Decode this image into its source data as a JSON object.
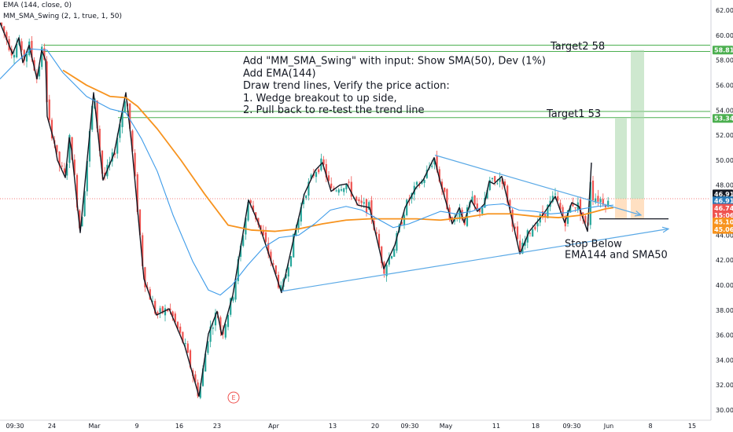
{
  "indicators": {
    "ema_label": "EMA (144, close, 0)",
    "swing_label": "MM_SMA_Swing (2, 1, true, 1, 50)"
  },
  "colors": {
    "up_candle": "#26a69a",
    "down_candle": "#ef5350",
    "ema144": "#f7931e",
    "sma50": "#3d9be9",
    "swing_line": "#131722",
    "trend_line": "#5aa9e6",
    "target_line": "#4caf50",
    "target_box": "#a5d6a7",
    "stop_box": "#ffcc99",
    "current_price": "#ef5350",
    "axis_text": "#131722"
  },
  "chart_data": {
    "type": "line",
    "title": "",
    "xlabel": "",
    "ylabel": "",
    "ylim": [
      29.5,
      63
    ],
    "grid": false,
    "x_ticks": [
      "09:30",
      "24",
      "Mar",
      "9",
      "16",
      "23",
      "Apr",
      "13",
      "20",
      "09:30",
      "May",
      "11",
      "18",
      "09:30",
      "Jun",
      "8",
      "15"
    ],
    "y_ticks": [
      30.0,
      32.0,
      34.0,
      36.0,
      38.0,
      40.0,
      42.0,
      44.0,
      46.0,
      48.0,
      50.0,
      52.0,
      54.0,
      56.0,
      58.0,
      60.0,
      62.0
    ],
    "series": [
      {
        "role": "swing",
        "values": [
          {
            "x": 0,
            "y": 61.0
          },
          {
            "x": 16,
            "y": 58.5
          },
          {
            "x": 24,
            "y": 59.8
          },
          {
            "x": 29,
            "y": 57.8
          },
          {
            "x": 37,
            "y": 59.2
          },
          {
            "x": 47,
            "y": 56.5
          },
          {
            "x": 53,
            "y": 58.8
          },
          {
            "x": 58,
            "y": 58.0
          },
          {
            "x": 60,
            "y": 53.5
          },
          {
            "x": 69,
            "y": 51.5
          },
          {
            "x": 73,
            "y": 50.0
          },
          {
            "x": 83,
            "y": 48.6
          },
          {
            "x": 88,
            "y": 51.8
          },
          {
            "x": 91,
            "y": 50.8
          },
          {
            "x": 102,
            "y": 44.2
          },
          {
            "x": 119,
            "y": 55.4
          },
          {
            "x": 131,
            "y": 48.4
          },
          {
            "x": 145,
            "y": 50.5
          },
          {
            "x": 160,
            "y": 55.4
          },
          {
            "x": 167,
            "y": 51.5
          },
          {
            "x": 183,
            "y": 40.5
          },
          {
            "x": 199,
            "y": 37.6
          },
          {
            "x": 215,
            "y": 38.1
          },
          {
            "x": 235,
            "y": 35.1
          },
          {
            "x": 253,
            "y": 31.1
          },
          {
            "x": 265,
            "y": 36.1
          },
          {
            "x": 276,
            "y": 37.9
          },
          {
            "x": 282,
            "y": 36.0
          },
          {
            "x": 296,
            "y": 39.2
          },
          {
            "x": 316,
            "y": 46.8
          },
          {
            "x": 329,
            "y": 44.9
          },
          {
            "x": 358,
            "y": 39.4
          },
          {
            "x": 373,
            "y": 43.6
          },
          {
            "x": 387,
            "y": 47.3
          },
          {
            "x": 401,
            "y": 49.2
          },
          {
            "x": 410,
            "y": 49.8
          },
          {
            "x": 421,
            "y": 47.5
          },
          {
            "x": 432,
            "y": 48.0
          },
          {
            "x": 441,
            "y": 48.1
          },
          {
            "x": 455,
            "y": 46.4
          },
          {
            "x": 470,
            "y": 46.2
          },
          {
            "x": 488,
            "y": 41.3
          },
          {
            "x": 502,
            "y": 43.2
          },
          {
            "x": 515,
            "y": 46.2
          },
          {
            "x": 529,
            "y": 47.8
          },
          {
            "x": 538,
            "y": 48.4
          },
          {
            "x": 552,
            "y": 50.2
          },
          {
            "x": 560,
            "y": 48.2
          },
          {
            "x": 575,
            "y": 44.9
          },
          {
            "x": 584,
            "y": 46.2
          },
          {
            "x": 590,
            "y": 45.0
          },
          {
            "x": 599,
            "y": 46.8
          },
          {
            "x": 607,
            "y": 45.9
          },
          {
            "x": 616,
            "y": 46.5
          },
          {
            "x": 622,
            "y": 48.3
          },
          {
            "x": 628,
            "y": 48.1
          },
          {
            "x": 638,
            "y": 48.7
          },
          {
            "x": 647,
            "y": 46.4
          },
          {
            "x": 661,
            "y": 42.5
          },
          {
            "x": 673,
            "y": 44.3
          },
          {
            "x": 690,
            "y": 45.6
          },
          {
            "x": 706,
            "y": 47.1
          },
          {
            "x": 718,
            "y": 45.0
          },
          {
            "x": 727,
            "y": 46.6
          },
          {
            "x": 736,
            "y": 46.3
          },
          {
            "x": 747,
            "y": 44.3
          },
          {
            "x": 752,
            "y": 49.8
          }
        ]
      },
      {
        "role": "ema144",
        "values": [
          {
            "x": 80,
            "y": 57.2
          },
          {
            "x": 110,
            "y": 56.0
          },
          {
            "x": 140,
            "y": 55.1
          },
          {
            "x": 160,
            "y": 55.0
          },
          {
            "x": 175,
            "y": 54.3
          },
          {
            "x": 200,
            "y": 52.5
          },
          {
            "x": 230,
            "y": 50.0
          },
          {
            "x": 260,
            "y": 47.3
          },
          {
            "x": 290,
            "y": 44.8
          },
          {
            "x": 320,
            "y": 44.4
          },
          {
            "x": 350,
            "y": 44.3
          },
          {
            "x": 380,
            "y": 44.5
          },
          {
            "x": 410,
            "y": 44.9
          },
          {
            "x": 440,
            "y": 45.2
          },
          {
            "x": 470,
            "y": 45.3
          },
          {
            "x": 500,
            "y": 45.3
          },
          {
            "x": 530,
            "y": 45.3
          },
          {
            "x": 560,
            "y": 45.2
          },
          {
            "x": 590,
            "y": 45.4
          },
          {
            "x": 620,
            "y": 45.7
          },
          {
            "x": 650,
            "y": 45.7
          },
          {
            "x": 680,
            "y": 45.5
          },
          {
            "x": 710,
            "y": 45.4
          },
          {
            "x": 740,
            "y": 45.6
          },
          {
            "x": 770,
            "y": 46.1
          },
          {
            "x": 780,
            "y": 46.2
          }
        ]
      },
      {
        "role": "sma50",
        "values": [
          {
            "x": 0,
            "y": 56.5
          },
          {
            "x": 20,
            "y": 57.8
          },
          {
            "x": 40,
            "y": 58.9
          },
          {
            "x": 60,
            "y": 58.8
          },
          {
            "x": 80,
            "y": 57.0
          },
          {
            "x": 110,
            "y": 55.1
          },
          {
            "x": 140,
            "y": 54.1
          },
          {
            "x": 160,
            "y": 53.8
          },
          {
            "x": 180,
            "y": 51.7
          },
          {
            "x": 200,
            "y": 49.1
          },
          {
            "x": 220,
            "y": 45.6
          },
          {
            "x": 245,
            "y": 41.9
          },
          {
            "x": 265,
            "y": 39.6
          },
          {
            "x": 280,
            "y": 39.2
          },
          {
            "x": 295,
            "y": 40.0
          },
          {
            "x": 315,
            "y": 41.6
          },
          {
            "x": 335,
            "y": 43.0
          },
          {
            "x": 355,
            "y": 43.8
          },
          {
            "x": 380,
            "y": 44.0
          },
          {
            "x": 400,
            "y": 44.9
          },
          {
            "x": 420,
            "y": 46.0
          },
          {
            "x": 440,
            "y": 46.3
          },
          {
            "x": 460,
            "y": 46.0
          },
          {
            "x": 480,
            "y": 45.3
          },
          {
            "x": 500,
            "y": 44.6
          },
          {
            "x": 520,
            "y": 44.9
          },
          {
            "x": 540,
            "y": 45.4
          },
          {
            "x": 560,
            "y": 45.9
          },
          {
            "x": 580,
            "y": 45.7
          },
          {
            "x": 600,
            "y": 45.9
          },
          {
            "x": 620,
            "y": 46.4
          },
          {
            "x": 640,
            "y": 46.5
          },
          {
            "x": 660,
            "y": 46.0
          },
          {
            "x": 680,
            "y": 45.9
          },
          {
            "x": 700,
            "y": 45.7
          },
          {
            "x": 720,
            "y": 45.8
          },
          {
            "x": 740,
            "y": 46.1
          },
          {
            "x": 760,
            "y": 46.3
          },
          {
            "x": 780,
            "y": 46.4
          }
        ]
      }
    ],
    "trend_lines": [
      {
        "name": "upper",
        "from": {
          "x": 553,
          "y": 50.4
        },
        "to": {
          "x": 815,
          "y": 45.6
        }
      },
      {
        "name": "lower",
        "from": {
          "x": 358,
          "y": 39.5
        },
        "to": {
          "x": 850,
          "y": 44.5
        }
      }
    ],
    "stop_line": {
      "from": {
        "x": 762,
        "y": 45.3
      },
      "to": {
        "x": 850,
        "y": 45.3
      }
    },
    "horizontal_levels": [
      {
        "y": 59.2,
        "from_x": 55
      },
      {
        "y": 58.7,
        "from_x": 55
      },
      {
        "y": 53.9,
        "from_x": 150
      },
      {
        "y": 53.4,
        "from_x": 150
      }
    ],
    "target_boxes": [
      {
        "x0": 782,
        "x1": 797,
        "y0": 46.9,
        "y1": 53.34
      },
      {
        "x0": 802,
        "x1": 819,
        "y0": 46.9,
        "y1": 58.81
      }
    ],
    "stop_boxes": [
      {
        "x0": 782,
        "x1": 797,
        "y0": 45.3,
        "y1": 46.9
      },
      {
        "x0": 802,
        "x1": 819,
        "y0": 45.3,
        "y1": 46.9
      }
    ],
    "current_price": 46.91,
    "price_tags": [
      {
        "label": "58.81",
        "y": 58.81,
        "color": "#4caf50"
      },
      {
        "label": "53.34",
        "y": 53.34,
        "color": "#4caf50"
      },
      {
        "label": "46.91",
        "y": 47.3,
        "color": "#131722"
      },
      {
        "label": "46.91",
        "y": 46.75,
        "color": "#2a7ab8"
      },
      {
        "label": "46.74",
        "y": 46.15,
        "color": "#ef5350"
      },
      {
        "label": "15:06",
        "y": 45.6,
        "color": "#ef5350"
      },
      {
        "label": "45.10",
        "y": 45.05,
        "color": "#f7931e"
      },
      {
        "label": "45.06",
        "y": 44.45,
        "color": "#f7931e"
      }
    ],
    "annotations": [
      {
        "text": "Add \"MM_SMA_Swing\" with input: Show SMA(50),  Dev (1%)",
        "x": 309,
        "y": 57.7,
        "size": 13
      },
      {
        "text": "Add EMA(144)",
        "x": 309,
        "y": 56.7,
        "size": 13
      },
      {
        "text": "Draw trend lines, Verify the price action:",
        "x": 309,
        "y": 55.7,
        "size": 13
      },
      {
        "text": "1. Wedge breakout to up side,",
        "x": 309,
        "y": 54.7,
        "size": 13
      },
      {
        "text": "2. Pull back to re-test the trend line",
        "x": 309,
        "y": 53.75,
        "size": 13
      },
      {
        "text": "Target2 58",
        "x": 700,
        "y": 58.85,
        "size": 13
      },
      {
        "text": "Target1 53",
        "x": 695,
        "y": 53.45,
        "size": 13
      },
      {
        "text": "Stop Below",
        "x": 718,
        "y": 43.05,
        "size": 13
      },
      {
        "text": "EMA144 and SMA50",
        "x": 718,
        "y": 42.15,
        "size": 13
      }
    ],
    "event_marker": {
      "label": "E",
      "x": 297,
      "y": 31.0
    }
  }
}
